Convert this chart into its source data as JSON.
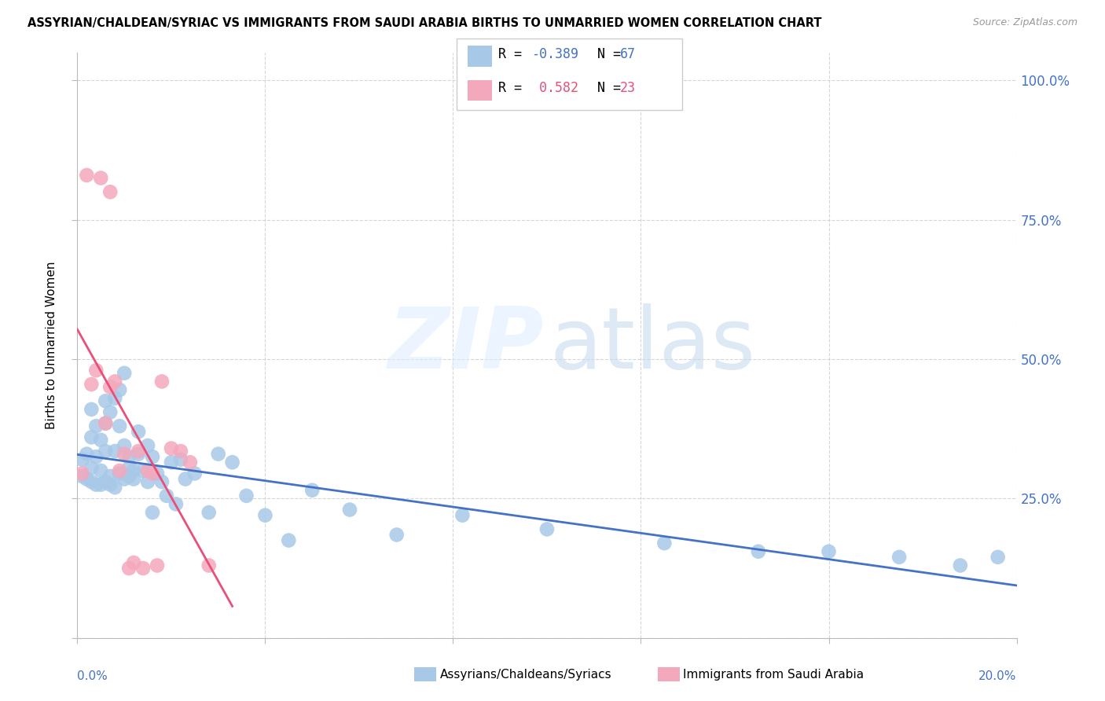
{
  "title": "ASSYRIAN/CHALDEAN/SYRIAC VS IMMIGRANTS FROM SAUDI ARABIA BIRTHS TO UNMARRIED WOMEN CORRELATION CHART",
  "source": "Source: ZipAtlas.com",
  "ylabel": "Births to Unmarried Women",
  "legend_label1": "Assyrians/Chaldeans/Syriacs",
  "legend_label2": "Immigrants from Saudi Arabia",
  "R1": -0.389,
  "N1": 67,
  "R2": 0.582,
  "N2": 23,
  "color1": "#a8c8e8",
  "color2": "#f4a8bc",
  "line_color1": "#4472c4",
  "line_color2": "#e8507a",
  "blue_x": [
    0.001,
    0.001,
    0.002,
    0.002,
    0.003,
    0.003,
    0.003,
    0.003,
    0.004,
    0.004,
    0.004,
    0.005,
    0.005,
    0.005,
    0.006,
    0.006,
    0.006,
    0.006,
    0.007,
    0.007,
    0.007,
    0.008,
    0.008,
    0.008,
    0.009,
    0.009,
    0.009,
    0.01,
    0.01,
    0.01,
    0.011,
    0.011,
    0.011,
    0.012,
    0.012,
    0.013,
    0.013,
    0.014,
    0.015,
    0.015,
    0.016,
    0.016,
    0.017,
    0.018,
    0.019,
    0.02,
    0.021,
    0.022,
    0.023,
    0.025,
    0.028,
    0.03,
    0.033,
    0.036,
    0.04,
    0.045,
    0.05,
    0.058,
    0.068,
    0.082,
    0.1,
    0.125,
    0.145,
    0.16,
    0.175,
    0.188,
    0.196
  ],
  "blue_y": [
    0.32,
    0.29,
    0.33,
    0.285,
    0.36,
    0.305,
    0.28,
    0.41,
    0.325,
    0.275,
    0.38,
    0.355,
    0.3,
    0.275,
    0.335,
    0.425,
    0.385,
    0.28,
    0.29,
    0.405,
    0.275,
    0.43,
    0.335,
    0.27,
    0.445,
    0.295,
    0.38,
    0.475,
    0.345,
    0.285,
    0.325,
    0.305,
    0.29,
    0.3,
    0.285,
    0.37,
    0.33,
    0.3,
    0.345,
    0.28,
    0.325,
    0.225,
    0.295,
    0.28,
    0.255,
    0.315,
    0.24,
    0.32,
    0.285,
    0.295,
    0.225,
    0.33,
    0.315,
    0.255,
    0.22,
    0.175,
    0.265,
    0.23,
    0.185,
    0.22,
    0.195,
    0.17,
    0.155,
    0.155,
    0.145,
    0.13,
    0.145
  ],
  "pink_x": [
    0.001,
    0.002,
    0.003,
    0.004,
    0.005,
    0.006,
    0.007,
    0.007,
    0.008,
    0.009,
    0.01,
    0.011,
    0.012,
    0.013,
    0.014,
    0.015,
    0.016,
    0.017,
    0.018,
    0.02,
    0.022,
    0.024,
    0.028
  ],
  "pink_y": [
    0.295,
    0.83,
    0.455,
    0.48,
    0.825,
    0.385,
    0.8,
    0.45,
    0.46,
    0.3,
    0.33,
    0.125,
    0.135,
    0.335,
    0.125,
    0.3,
    0.295,
    0.13,
    0.46,
    0.34,
    0.335,
    0.315,
    0.13
  ],
  "xmin": 0.0,
  "xmax": 0.2,
  "ymin": 0.0,
  "ymax": 1.05,
  "blue_line_x0": 0.0,
  "blue_line_x1": 0.2,
  "pink_line_x0": 0.0,
  "pink_line_x1": 0.033
}
